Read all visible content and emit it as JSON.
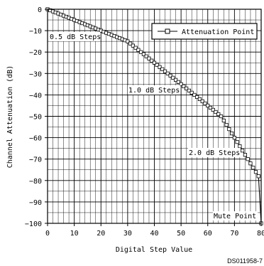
{
  "chart_data": {
    "type": "line",
    "xlabel": "Digital Step Value",
    "ylabel": "Channel Attenuation (dB)",
    "xlim": [
      0,
      80
    ],
    "ylim": [
      -100,
      0
    ],
    "xticks": [
      0,
      10,
      20,
      30,
      40,
      50,
      60,
      70,
      80
    ],
    "yticks": [
      0,
      -10,
      -20,
      -30,
      -40,
      -50,
      -60,
      -70,
      -80,
      -90,
      -100
    ],
    "xtick_labels": [
      "0",
      "10",
      "20",
      "30",
      "40",
      "50",
      "60",
      "70",
      "80"
    ],
    "ytick_labels": [
      "0",
      "−10",
      "−20",
      "−30",
      "−40",
      "−50",
      "−60",
      "−70",
      "−80",
      "−90",
      "−100"
    ],
    "grid": true,
    "legend_position": "top-right",
    "series": [
      {
        "name": "Attenuation Point",
        "marker": "square",
        "color": "#000000",
        "x": [
          0,
          1,
          2,
          3,
          4,
          5,
          6,
          7,
          8,
          9,
          10,
          11,
          12,
          13,
          14,
          15,
          16,
          17,
          18,
          19,
          20,
          21,
          22,
          23,
          24,
          25,
          26,
          27,
          28,
          29,
          30,
          31,
          32,
          33,
          34,
          35,
          36,
          37,
          38,
          39,
          40,
          41,
          42,
          43,
          44,
          45,
          46,
          47,
          48,
          49,
          50,
          51,
          52,
          53,
          54,
          55,
          56,
          57,
          58,
          59,
          60,
          61,
          62,
          63,
          64,
          65,
          66,
          67,
          68,
          69,
          70,
          71,
          72,
          73,
          74,
          75,
          76,
          77,
          78,
          79,
          80
        ],
        "y": [
          0,
          -0.5,
          -1,
          -1.5,
          -2,
          -2.5,
          -3,
          -3.5,
          -4,
          -4.5,
          -5,
          -5.5,
          -6,
          -6.5,
          -7,
          -7.5,
          -8,
          -8.5,
          -9,
          -9.5,
          -10,
          -10.5,
          -11,
          -11.5,
          -12,
          -12.5,
          -13,
          -13.5,
          -14,
          -14.5,
          -15,
          -16,
          -17,
          -18,
          -19,
          -20,
          -21,
          -22,
          -23,
          -24,
          -25,
          -26,
          -27,
          -28,
          -29,
          -30,
          -31,
          -32,
          -33,
          -34,
          -35,
          -36,
          -37,
          -38,
          -39,
          -40,
          -41,
          -42,
          -43,
          -44,
          -45,
          -46,
          -47,
          -48,
          -49,
          -50,
          -52,
          -54,
          -56,
          -58,
          -60,
          -62,
          -64,
          -66,
          -68,
          -70,
          -72,
          -74,
          -76,
          -78,
          -100
        ]
      }
    ],
    "annotations": [
      {
        "text": "0.5 dB Steps",
        "x": 1,
        "y": -13
      },
      {
        "text": "1.0 dB Steps",
        "x": 31,
        "y": -40
      },
      {
        "text": "2.0 dB Steps",
        "x": 54,
        "y": -70
      },
      {
        "text": "Mute Point",
        "x": 63,
        "y": -97
      }
    ],
    "figure_code": "DS011958-7"
  }
}
